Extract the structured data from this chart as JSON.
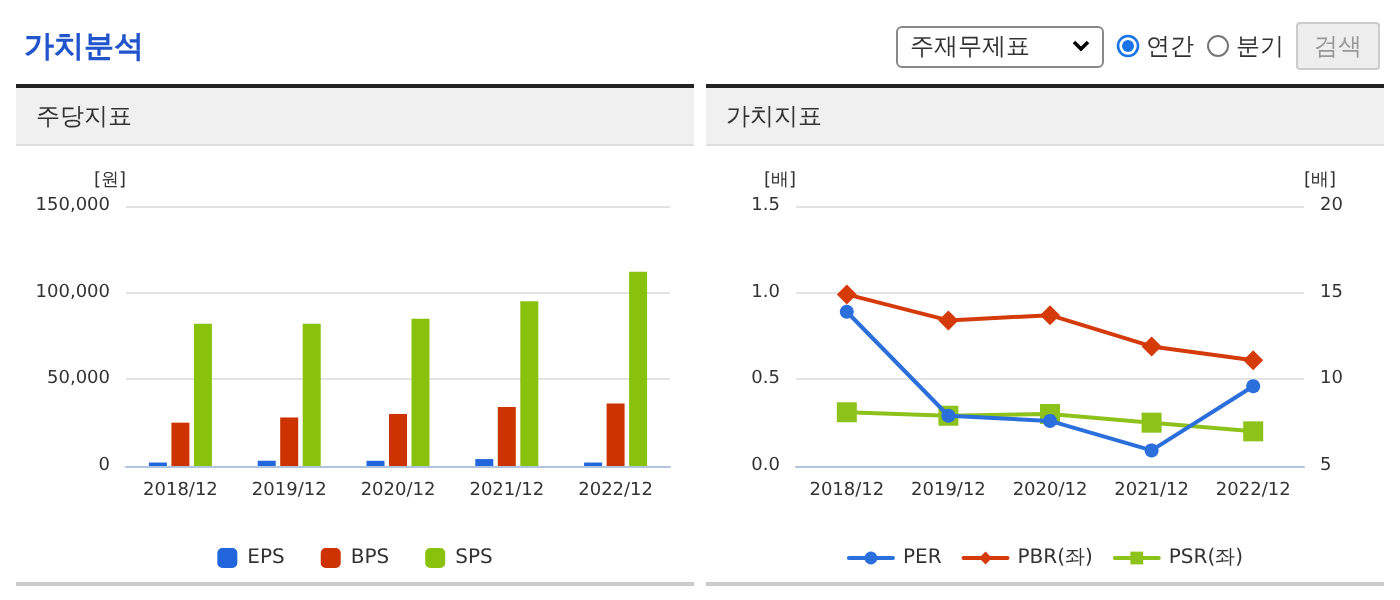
{
  "chart_data": [
    {
      "type": "other",
      "title": "가치분석",
      "annotations": [
        "주재무제표",
        "연간",
        "분기",
        "검색"
      ]
    },
    {
      "type": "bar",
      "title": "주당지표",
      "ylabel": "[원]",
      "categories": [
        "2018/12",
        "2019/12",
        "2020/12",
        "2021/12",
        "2022/12"
      ],
      "series": [
        {
          "name": "EPS",
          "color": "#2266dd",
          "values": [
            2000,
            3000,
            3000,
            4000,
            2000
          ]
        },
        {
          "name": "BPS",
          "color": "#cc3300",
          "values": [
            25000,
            28000,
            30000,
            34000,
            36000
          ]
        },
        {
          "name": "SPS",
          "color": "#88c20c",
          "values": [
            82000,
            82000,
            85000,
            95000,
            112000
          ]
        }
      ],
      "ylim": [
        0,
        150000
      ],
      "yticks": [
        0,
        {
          "value": 50000,
          "label": "50,000"
        },
        {
          "value": 100000,
          "label": "100,000"
        },
        {
          "value": 150000,
          "label": "150,000"
        }
      ],
      "grid": "y",
      "legend": "bottom"
    },
    {
      "type": "line",
      "title": "가치지표",
      "ylabel": "[배]",
      "y2label": "[배]",
      "categories": [
        "2018/12",
        "2019/12",
        "2020/12",
        "2021/12",
        "2022/12"
      ],
      "series": [
        {
          "name": "PER",
          "color": "#2b6fdc",
          "axis": "y2",
          "marker": "circle",
          "values": [
            13.9,
            7.9,
            7.6,
            5.9,
            9.6
          ]
        },
        {
          "name": "PBR(좌)",
          "color": "#d43a0a",
          "marker": "diamond",
          "values": [
            0.99,
            0.84,
            0.87,
            0.69,
            0.61
          ]
        },
        {
          "name": "PSR(좌)",
          "color": "#8cc21a",
          "marker": "square",
          "values": [
            0.31,
            0.29,
            0.3,
            0.25,
            0.2
          ]
        }
      ],
      "ylim": [
        0,
        1.5
      ],
      "yticks": [
        {
          "value": 0,
          "label": "0.0"
        },
        0.5,
        {
          "value": 1,
          "label": "1.0"
        },
        1.5
      ],
      "y2lim": [
        5,
        20
      ],
      "y2ticks": [
        5,
        10,
        15,
        20
      ],
      "grid": "y",
      "legend": "bottom",
      "line_style": "solid"
    }
  ]
}
